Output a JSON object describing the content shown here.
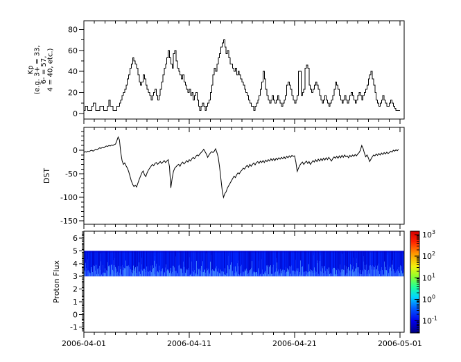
{
  "figure": {
    "background": "#ffffff",
    "stroke": "#000000"
  },
  "x_axis": {
    "start_date": "2006-04-01",
    "tick_labels": [
      "2006-04-01",
      "2006-04-11",
      "2006-04-21",
      "2006-05-01"
    ],
    "tick_days": [
      0,
      10,
      20,
      30
    ],
    "minor_step_days": 1,
    "range_days": [
      0,
      30.4
    ]
  },
  "chart_data": [
    {
      "type": "line",
      "name": "kp-index",
      "render": "step",
      "ylabel_lines": [
        "Kp",
        "(e.g. 3+ = 33,",
        "6- = 57,",
        "4 = 40, etc.)"
      ],
      "yticks": [
        0,
        20,
        40,
        60,
        80
      ],
      "ytick_minor": 10,
      "ylim": [
        -5.2,
        88.1
      ],
      "x_step_days": 0.125,
      "values": [
        3,
        7,
        7,
        3,
        3,
        3,
        7,
        10,
        10,
        3,
        3,
        3,
        7,
        7,
        7,
        3,
        3,
        3,
        7,
        13,
        7,
        7,
        3,
        3,
        3,
        7,
        7,
        10,
        13,
        17,
        20,
        23,
        27,
        33,
        37,
        43,
        47,
        53,
        50,
        47,
        43,
        37,
        30,
        27,
        30,
        37,
        33,
        27,
        23,
        20,
        17,
        13,
        17,
        20,
        23,
        17,
        13,
        17,
        23,
        30,
        37,
        43,
        47,
        53,
        60,
        53,
        47,
        43,
        57,
        60,
        50,
        43,
        40,
        37,
        33,
        37,
        30,
        27,
        23,
        20,
        23,
        17,
        20,
        13,
        17,
        20,
        13,
        7,
        3,
        7,
        10,
        7,
        3,
        7,
        10,
        13,
        20,
        27,
        37,
        43,
        40,
        47,
        53,
        57,
        63,
        67,
        70,
        63,
        57,
        60,
        53,
        47,
        47,
        43,
        40,
        43,
        37,
        40,
        37,
        33,
        30,
        27,
        23,
        20,
        17,
        13,
        10,
        7,
        7,
        3,
        7,
        10,
        13,
        17,
        23,
        30,
        40,
        33,
        23,
        17,
        13,
        10,
        13,
        17,
        13,
        10,
        13,
        17,
        13,
        10,
        7,
        10,
        13,
        17,
        27,
        30,
        27,
        23,
        17,
        13,
        10,
        13,
        17,
        40,
        40,
        17,
        20,
        23,
        43,
        46,
        43,
        27,
        23,
        20,
        23,
        27,
        30,
        27,
        23,
        17,
        13,
        10,
        13,
        17,
        13,
        10,
        7,
        10,
        13,
        17,
        23,
        30,
        27,
        23,
        17,
        13,
        10,
        13,
        17,
        13,
        10,
        13,
        17,
        20,
        17,
        13,
        10,
        13,
        17,
        20,
        17,
        13,
        17,
        20,
        23,
        27,
        33,
        37,
        40,
        33,
        27,
        20,
        13,
        10,
        7,
        10,
        13,
        17,
        13,
        10,
        7,
        7,
        10,
        13,
        10,
        7,
        5,
        3,
        3,
        3
      ]
    },
    {
      "type": "line",
      "name": "dst-index",
      "render": "linear",
      "ylabel": "DST",
      "yticks": [
        0,
        -50,
        -100,
        -150
      ],
      "ytick_minor": 10,
      "ylim": [
        -157,
        48.5
      ],
      "x_step_days": 0.125,
      "values": [
        -5,
        -3,
        -4,
        -2,
        -3,
        -1,
        0,
        -2,
        0,
        2,
        1,
        3,
        5,
        4,
        6,
        5,
        7,
        9,
        8,
        10,
        9,
        11,
        10,
        12,
        13,
        20,
        28,
        22,
        -5,
        -22,
        -30,
        -27,
        -33,
        -38,
        -45,
        -55,
        -65,
        -72,
        -77,
        -74,
        -78,
        -70,
        -62,
        -55,
        -48,
        -44,
        -52,
        -56,
        -48,
        -42,
        -38,
        -34,
        -30,
        -33,
        -28,
        -26,
        -30,
        -27,
        -24,
        -28,
        -25,
        -22,
        -26,
        -23,
        -20,
        -35,
        -80,
        -60,
        -45,
        -38,
        -35,
        -32,
        -30,
        -34,
        -28,
        -25,
        -29,
        -26,
        -22,
        -25,
        -20,
        -23,
        -18,
        -15,
        -18,
        -13,
        -10,
        -12,
        -8,
        -5,
        -2,
        2,
        -3,
        -8,
        -15,
        -10,
        -6,
        -3,
        -5,
        -2,
        3,
        -5,
        -15,
        -35,
        -60,
        -85,
        -100,
        -92,
        -88,
        -80,
        -75,
        -70,
        -65,
        -60,
        -55,
        -58,
        -52,
        -48,
        -50,
        -45,
        -42,
        -38,
        -40,
        -35,
        -32,
        -36,
        -30,
        -34,
        -30,
        -27,
        -31,
        -26,
        -24,
        -28,
        -23,
        -26,
        -22,
        -26,
        -21,
        -24,
        -20,
        -23,
        -18,
        -22,
        -18,
        -22,
        -17,
        -20,
        -16,
        -19,
        -15,
        -18,
        -14,
        -18,
        -13,
        -16,
        -12,
        -15,
        -11,
        -13,
        -12,
        -25,
        -45,
        -38,
        -32,
        -28,
        -25,
        -30,
        -26,
        -23,
        -28,
        -24,
        -30,
        -26,
        -22,
        -25,
        -20,
        -24,
        -19,
        -23,
        -18,
        -22,
        -17,
        -21,
        -16,
        -20,
        -15,
        -19,
        -23,
        -18,
        -14,
        -17,
        -13,
        -17,
        -12,
        -16,
        -11,
        -15,
        -10,
        -14,
        -12,
        -16,
        -11,
        -14,
        -10,
        -13,
        -9,
        -12,
        -8,
        -5,
        0,
        10,
        4,
        -6,
        -14,
        -10,
        -16,
        -24,
        -19,
        -14,
        -10,
        -12,
        -8,
        -11,
        -7,
        -10,
        -6,
        -9,
        -5,
        -8,
        -4,
        -7,
        -5,
        -2,
        -4,
        0,
        -2,
        1,
        -1,
        2
      ]
    },
    {
      "type": "heatmap",
      "name": "proton-flux-spectrogram",
      "ylabel": "Proton Flux",
      "yticks": [
        -1,
        0,
        1,
        2,
        3,
        4,
        5,
        6
      ],
      "ytick_minor": 0.1,
      "ylim": [
        -1.4,
        6.55
      ],
      "band": {
        "ymin": 3,
        "ymax": 5,
        "base_color": "#0012dc",
        "streak_color": "#3c78ff",
        "top_edge_color": "#0000c8",
        "note": "continuous blue band (flux ~0.1) with lighter vertical streaks near lower edge"
      },
      "colorbar": {
        "scale": "log10",
        "tick_exponents": [
          3,
          2,
          1,
          0,
          -1
        ],
        "tick_base": "10",
        "gradient_bottom_to_top": [
          "#000082",
          "#0000ee",
          "#0064ff",
          "#00d4ff",
          "#1eff9b",
          "#8aff2e",
          "#f2f20c",
          "#ff9600",
          "#ff1e00",
          "#d40000"
        ]
      }
    }
  ]
}
